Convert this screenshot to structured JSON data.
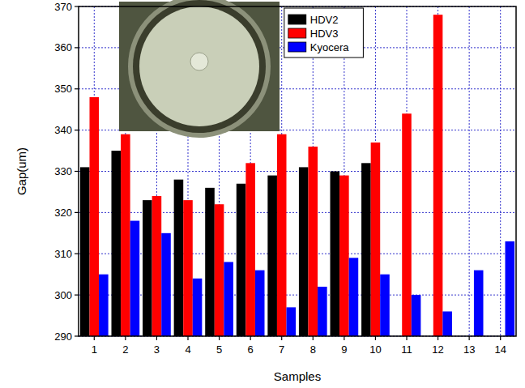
{
  "chart_data": {
    "type": "bar",
    "x_label": "Samples",
    "y_label": "Gap(um)",
    "categories": [
      "1",
      "2",
      "3",
      "4",
      "5",
      "6",
      "7",
      "8",
      "9",
      "10",
      "11",
      "12",
      "13",
      "14"
    ],
    "series": [
      {
        "name": "HDV2",
        "color": "#000000",
        "values": [
          331,
          335,
          323,
          328,
          326,
          327,
          329,
          331,
          330,
          332,
          null,
          null,
          null,
          null
        ]
      },
      {
        "name": "HDV3",
        "color": "#ff0000",
        "values": [
          348,
          339,
          324,
          323,
          322,
          332,
          339,
          336,
          329,
          337,
          344,
          368,
          null,
          null
        ]
      },
      {
        "name": "Kyocera",
        "color": "#0000ff",
        "values": [
          305,
          318,
          315,
          304,
          308,
          306,
          297,
          302,
          309,
          305,
          300,
          296,
          306,
          313
        ]
      }
    ],
    "ylim": [
      290,
      370
    ],
    "yticks": [
      290,
      300,
      310,
      320,
      330,
      340,
      350,
      360,
      370
    ],
    "grid": true,
    "legend": "upper center"
  }
}
